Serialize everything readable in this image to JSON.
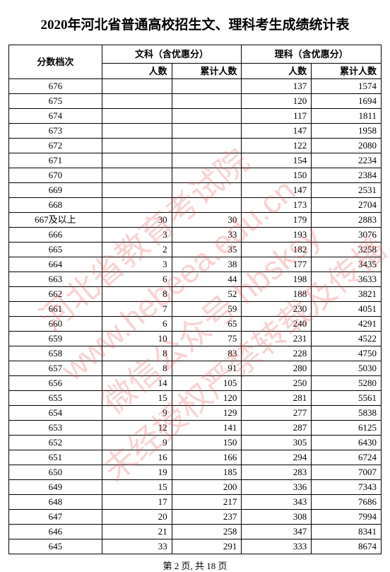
{
  "title": "2020年河北省普通高校招生文、理科考生成绩统计表",
  "footer": "第 2 页, 共 18 页",
  "watermark_lines": [
    "河北省教育考试院",
    "www.hebeea.edu.cn",
    "微信公众号 hbsksy",
    "未经授权严禁转载及传播"
  ],
  "headers": {
    "score_level": "分数档次",
    "arts_group": "文科（含优惠分）",
    "science_group": "理科（含优惠分）",
    "count": "人数",
    "cumulative": "累计人数"
  },
  "rows": [
    {
      "score": "676",
      "ac": "",
      "acum": "",
      "sc": "137",
      "scum": "1574"
    },
    {
      "score": "675",
      "ac": "",
      "acum": "",
      "sc": "120",
      "scum": "1694"
    },
    {
      "score": "674",
      "ac": "",
      "acum": "",
      "sc": "117",
      "scum": "1811"
    },
    {
      "score": "673",
      "ac": "",
      "acum": "",
      "sc": "147",
      "scum": "1958"
    },
    {
      "score": "672",
      "ac": "",
      "acum": "",
      "sc": "122",
      "scum": "2080"
    },
    {
      "score": "671",
      "ac": "",
      "acum": "",
      "sc": "154",
      "scum": "2234"
    },
    {
      "score": "670",
      "ac": "",
      "acum": "",
      "sc": "150",
      "scum": "2384"
    },
    {
      "score": "669",
      "ac": "",
      "acum": "",
      "sc": "147",
      "scum": "2531"
    },
    {
      "score": "668",
      "ac": "",
      "acum": "",
      "sc": "173",
      "scum": "2704"
    },
    {
      "score": "667及以上",
      "ac": "30",
      "acum": "30",
      "sc": "179",
      "scum": "2883"
    },
    {
      "score": "666",
      "ac": "3",
      "acum": "33",
      "sc": "193",
      "scum": "3076"
    },
    {
      "score": "665",
      "ac": "2",
      "acum": "35",
      "sc": "182",
      "scum": "3258"
    },
    {
      "score": "664",
      "ac": "3",
      "acum": "38",
      "sc": "177",
      "scum": "3435"
    },
    {
      "score": "663",
      "ac": "6",
      "acum": "44",
      "sc": "198",
      "scum": "3633"
    },
    {
      "score": "662",
      "ac": "8",
      "acum": "52",
      "sc": "188",
      "scum": "3821"
    },
    {
      "score": "661",
      "ac": "7",
      "acum": "59",
      "sc": "230",
      "scum": "4051"
    },
    {
      "score": "660",
      "ac": "6",
      "acum": "65",
      "sc": "240",
      "scum": "4291"
    },
    {
      "score": "659",
      "ac": "10",
      "acum": "75",
      "sc": "231",
      "scum": "4522"
    },
    {
      "score": "658",
      "ac": "8",
      "acum": "83",
      "sc": "228",
      "scum": "4750"
    },
    {
      "score": "657",
      "ac": "8",
      "acum": "91",
      "sc": "280",
      "scum": "5030"
    },
    {
      "score": "656",
      "ac": "14",
      "acum": "105",
      "sc": "250",
      "scum": "5280"
    },
    {
      "score": "655",
      "ac": "15",
      "acum": "120",
      "sc": "281",
      "scum": "5561"
    },
    {
      "score": "654",
      "ac": "9",
      "acum": "129",
      "sc": "277",
      "scum": "5838"
    },
    {
      "score": "653",
      "ac": "12",
      "acum": "141",
      "sc": "287",
      "scum": "6125"
    },
    {
      "score": "652",
      "ac": "9",
      "acum": "150",
      "sc": "305",
      "scum": "6430"
    },
    {
      "score": "651",
      "ac": "16",
      "acum": "166",
      "sc": "294",
      "scum": "6724"
    },
    {
      "score": "650",
      "ac": "19",
      "acum": "185",
      "sc": "283",
      "scum": "7007"
    },
    {
      "score": "649",
      "ac": "15",
      "acum": "200",
      "sc": "336",
      "scum": "7343"
    },
    {
      "score": "648",
      "ac": "17",
      "acum": "217",
      "sc": "343",
      "scum": "7686"
    },
    {
      "score": "647",
      "ac": "20",
      "acum": "237",
      "sc": "308",
      "scum": "7994"
    },
    {
      "score": "646",
      "ac": "21",
      "acum": "258",
      "sc": "347",
      "scum": "8341"
    },
    {
      "score": "645",
      "ac": "33",
      "acum": "291",
      "sc": "333",
      "scum": "8674"
    }
  ]
}
